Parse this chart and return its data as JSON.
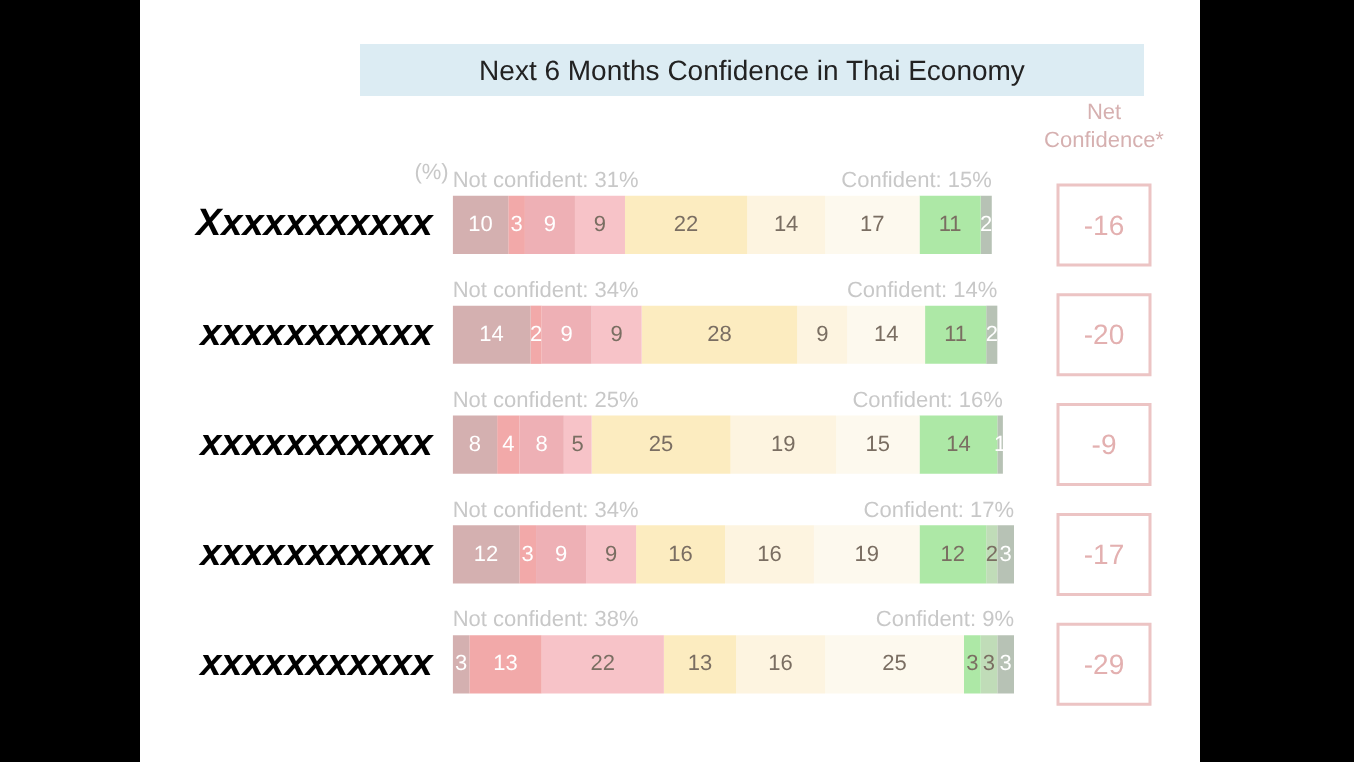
{
  "chart_data": {
    "type": "bar",
    "orientation": "horizontal",
    "stacked": true,
    "data_labels": true,
    "legend": false,
    "grid": false,
    "title": "Next 6 Months Confidence in Thai Economy",
    "categories": [
      "Xxxxxxxxxxx",
      "xxxxxxxxxxx",
      "xxxxxxxxxxx",
      "xxxxxxxxxxx",
      "xxxxxxxxxxx"
    ],
    "series": [
      {
        "color": "#d4b0b0",
        "values": [
          10,
          14,
          8,
          12,
          3
        ]
      },
      {
        "color": "#f2a9a9",
        "values": [
          3,
          2,
          4,
          3,
          13
        ]
      },
      {
        "color": "#eeb0b5",
        "values": [
          9,
          9,
          8,
          9,
          null
        ]
      },
      {
        "color": "#f7c3c8",
        "values": [
          9,
          9,
          5,
          9,
          22
        ]
      },
      {
        "color": "#fcecc0",
        "values": [
          22,
          28,
          25,
          16,
          13
        ]
      },
      {
        "color": "#fdf4e0",
        "values": [
          14,
          9,
          19,
          16,
          16
        ]
      },
      {
        "color": "#fdf9ee",
        "values": [
          17,
          14,
          15,
          19,
          25
        ]
      },
      {
        "color": "#ade8a6",
        "values": [
          11,
          11,
          14,
          12,
          3
        ]
      },
      {
        "color": "#c0dcb8",
        "values": [
          null,
          null,
          null,
          2,
          3
        ]
      },
      {
        "color": "#b7c2b5",
        "values": [
          2,
          2,
          1,
          3,
          3
        ]
      }
    ],
    "annotations": [
      "(%)",
      "Net Confidence*",
      "Not confident: 31%",
      "Confident: 15%",
      "-16",
      "Not confident: 34%",
      "Confident: 14%",
      "-20",
      "Not confident: 25%",
      "Confident: 16%",
      "-9",
      "Not confident: 34%",
      "Confident: 17%",
      "-17",
      "Not confident: 38%",
      "Confident: 9%",
      "-29"
    ]
  }
}
